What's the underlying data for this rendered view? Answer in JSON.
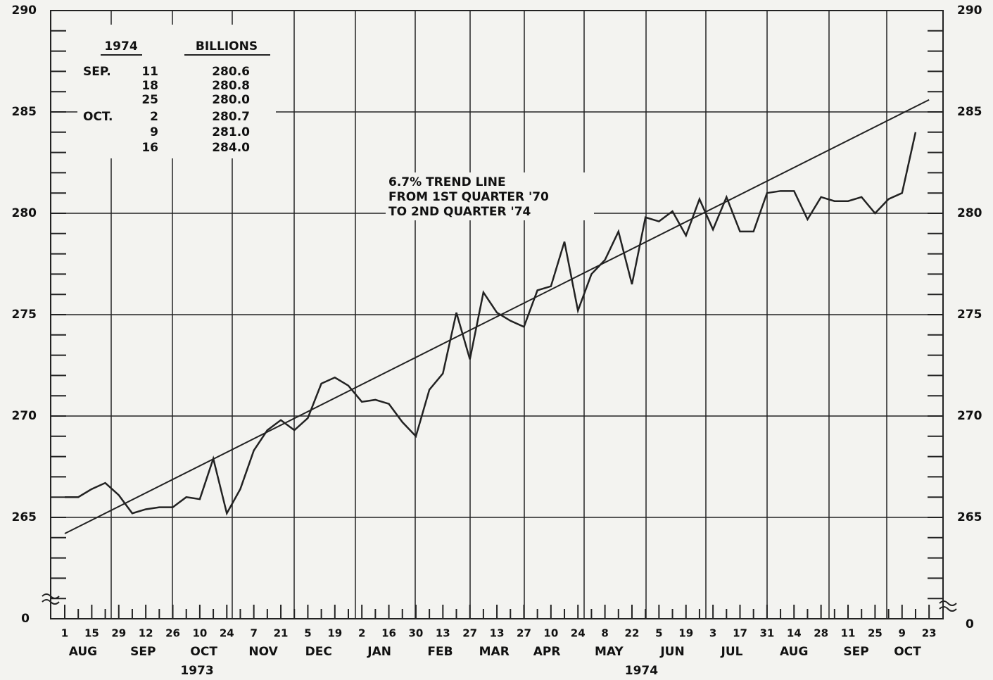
{
  "chart_data": {
    "type": "line",
    "categories": [
      "1",
      null,
      "15",
      null,
      "29",
      null,
      "12",
      null,
      "26",
      null,
      "10",
      null,
      "24",
      null,
      "7",
      null,
      "21",
      null,
      "5",
      null,
      "19",
      null,
      "2",
      null,
      "16",
      null,
      "30",
      null,
      "13",
      null,
      "27",
      null,
      "13",
      null,
      "27",
      null,
      "10",
      null,
      "24",
      null,
      "8",
      null,
      "22",
      null,
      "5",
      null,
      "19",
      null,
      "3",
      null,
      "17",
      null,
      "31",
      null,
      "14",
      null,
      "28",
      null,
      "11",
      null,
      "25",
      null,
      "9",
      null,
      "23"
    ],
    "months": [
      "AUG",
      "SEP",
      "OCT",
      "NOV",
      "DEC",
      "JAN",
      "FEB",
      "MAR",
      "APR",
      "MAY",
      "JUN",
      "JUL",
      "AUG",
      "SEP",
      "OCT"
    ],
    "years": [
      "1973",
      "1974"
    ],
    "series": [
      {
        "color": "#222222",
        "values": [
          266.0,
          266.0,
          266.4,
          266.7,
          266.1,
          265.2,
          265.4,
          265.5,
          265.5,
          266.0,
          265.9,
          267.9,
          265.2,
          266.4,
          268.3,
          269.3,
          269.8,
          269.3,
          269.9,
          271.6,
          271.9,
          271.5,
          270.7,
          270.8,
          270.6,
          269.7,
          269.0,
          271.3,
          272.1,
          275.1,
          272.8,
          276.1,
          275.1,
          274.7,
          274.4,
          276.2,
          276.4,
          278.6,
          275.2,
          277.0,
          277.7,
          279.1,
          276.5,
          279.8,
          279.6,
          280.1,
          278.9,
          280.7,
          279.2,
          280.8,
          279.1,
          279.1,
          281.0,
          281.1,
          281.1,
          279.7,
          280.8,
          280.6,
          280.6,
          280.8,
          280.0,
          280.7,
          281.0,
          284.0,
          null
        ]
      }
    ],
    "trend": {
      "label": [
        "6.7% TREND LINE",
        "FROM 1ST QUARTER '70",
        "TO 2ND QUARTER '74"
      ],
      "values": [
        264.2,
        285.6
      ]
    },
    "ylim": [
      260,
      290
    ],
    "yticks": [
      265,
      270,
      275,
      280,
      285,
      290
    ],
    "y_break_label": "0",
    "grid": true,
    "inset_table": {
      "header": [
        "1974",
        "BILLIONS"
      ],
      "rows": [
        [
          "SEP.",
          "11",
          "280.6"
        ],
        [
          null,
          "18",
          "280.8"
        ],
        [
          null,
          "25",
          "280.0"
        ],
        [
          "OCT.",
          "2",
          "280.7"
        ],
        [
          null,
          "9",
          "281.0"
        ],
        [
          null,
          "16",
          "284.0"
        ]
      ]
    }
  }
}
